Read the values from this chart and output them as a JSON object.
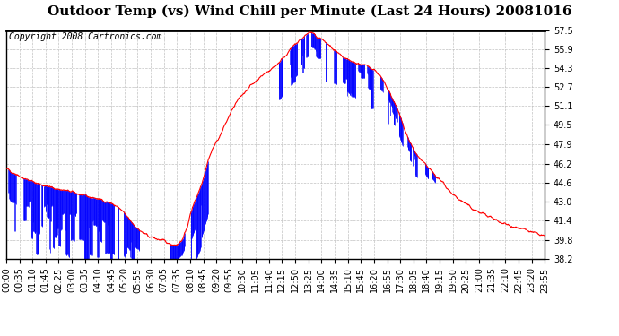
{
  "title": "Outdoor Temp (vs) Wind Chill per Minute (Last 24 Hours) 20081016",
  "copyright": "Copyright 2008 Cartronics.com",
  "yticks": [
    38.2,
    39.8,
    41.4,
    43.0,
    44.6,
    46.2,
    47.9,
    49.5,
    51.1,
    52.7,
    54.3,
    55.9,
    57.5
  ],
  "ylim": [
    38.2,
    57.5
  ],
  "xtick_labels": [
    "00:00",
    "00:35",
    "01:10",
    "01:45",
    "02:25",
    "03:00",
    "03:35",
    "04:10",
    "04:45",
    "05:20",
    "05:55",
    "06:30",
    "07:05",
    "07:35",
    "08:10",
    "08:45",
    "09:20",
    "09:55",
    "10:30",
    "11:05",
    "11:40",
    "12:15",
    "12:50",
    "13:25",
    "14:00",
    "14:35",
    "15:10",
    "15:45",
    "16:20",
    "16:55",
    "17:30",
    "18:05",
    "18:40",
    "19:15",
    "19:50",
    "20:25",
    "21:00",
    "21:35",
    "22:10",
    "22:45",
    "23:20",
    "23:55"
  ],
  "bg_color": "#ffffff",
  "plot_bg_color": "#ffffff",
  "grid_color": "#bbbbbb",
  "outer_temp_color": "#ff0000",
  "wind_chill_color": "#0000ff",
  "title_fontsize": 11,
  "copyright_fontsize": 7,
  "tick_fontsize": 7
}
